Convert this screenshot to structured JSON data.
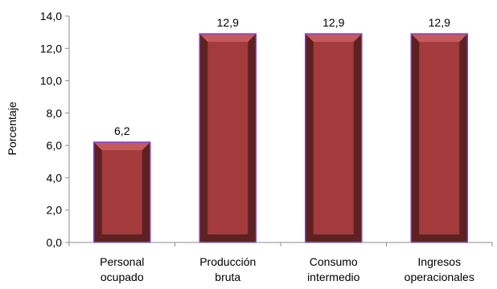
{
  "chart_data": {
    "type": "bar",
    "categories": [
      [
        "Personal",
        "ocupado"
      ],
      [
        "Producción",
        "bruta"
      ],
      [
        "Consumo",
        "intermedio"
      ],
      [
        "Ingresos",
        "operacionales"
      ]
    ],
    "values": [
      6.2,
      12.9,
      12.9,
      12.9
    ],
    "data_labels": [
      "6,2",
      "12,9",
      "12,9",
      "12,9"
    ],
    "ylabel": "Porcentaje",
    "ylim": [
      0,
      14
    ],
    "yticks": [
      "0,0",
      "2,0",
      "4,0",
      "6,0",
      "8,0",
      "10,0",
      "12,0",
      "14,0"
    ],
    "grid": false,
    "legend": "none",
    "colors": {
      "bar_face": "#a33a3b",
      "bar_side_dark": "#5e2122",
      "bar_top": "#c45a5b",
      "bar_outline": "#7b3fd0",
      "axis": "#8c8c8c"
    }
  }
}
